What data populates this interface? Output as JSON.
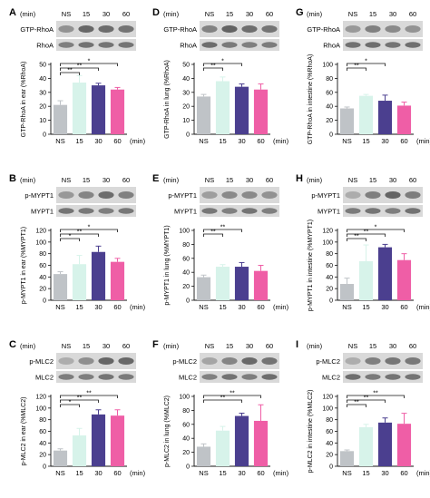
{
  "figure": {
    "time_unit": "(min)",
    "groups": [
      "NS",
      "15",
      "30",
      "60"
    ],
    "colors": [
      "#bfc3c7",
      "#d7f3ea",
      "#4b3f8f",
      "#ef5ea6"
    ]
  },
  "blots": [
    {
      "letter": "A",
      "top_label": "GTP-RhoA",
      "bottom_label": "RhoA"
    },
    {
      "letter": "D",
      "top_label": "GTP-RhoA",
      "bottom_label": "RhoA"
    },
    {
      "letter": "G",
      "top_label": "GTP-RhoA",
      "bottom_label": "RhoA"
    },
    {
      "letter": "B",
      "top_label": "p-MYPT1",
      "bottom_label": "MYPT1"
    },
    {
      "letter": "E",
      "top_label": "p-MYPT1",
      "bottom_label": "MYPT1"
    },
    {
      "letter": "H",
      "top_label": "p-MYPT1",
      "bottom_label": "MYPT1"
    },
    {
      "letter": "C",
      "top_label": "p-MLC2",
      "bottom_label": "MLC2"
    },
    {
      "letter": "F",
      "top_label": "p-MLC2",
      "bottom_label": "MLC2"
    },
    {
      "letter": "I",
      "top_label": "p-MLC2",
      "bottom_label": "MLC2"
    }
  ],
  "chart_data": [
    {
      "type": "bar",
      "categories": [
        "NS",
        "15",
        "30",
        "60"
      ],
      "xlabel": "(min)",
      "ylabel": "GTP-RhoA in ear (%RhoA)",
      "ylim": [
        0,
        50
      ],
      "yticks": [
        0,
        10,
        20,
        30,
        40,
        50
      ],
      "values": [
        21,
        37,
        35,
        32
      ],
      "errors": [
        3,
        5,
        1.5,
        1.5
      ],
      "significance": [
        {
          "from": "NS",
          "to": "15",
          "label": "**"
        },
        {
          "from": "NS",
          "to": "30",
          "label": "**"
        },
        {
          "from": "NS",
          "to": "60",
          "label": "*"
        }
      ]
    },
    {
      "type": "bar",
      "categories": [
        "NS",
        "15",
        "30",
        "60"
      ],
      "xlabel": "(min)",
      "ylabel": "GTP-RhoA in lung (%RhoA)",
      "ylim": [
        0,
        50
      ],
      "yticks": [
        0,
        10,
        20,
        30,
        40,
        50
      ],
      "values": [
        27,
        38,
        34,
        32
      ],
      "errors": [
        1.5,
        3,
        2,
        4
      ],
      "significance": [
        {
          "from": "NS",
          "to": "15",
          "label": "**"
        },
        {
          "from": "NS",
          "to": "30",
          "label": "*"
        }
      ]
    },
    {
      "type": "bar",
      "categories": [
        "NS",
        "15",
        "30",
        "60"
      ],
      "xlabel": "(min)",
      "ylabel": "GTP-RhoA in intestine (%RhoA)",
      "ylim": [
        0,
        100
      ],
      "yticks": [
        0,
        20,
        40,
        60,
        80,
        100
      ],
      "values": [
        37,
        55,
        48,
        41
      ],
      "errors": [
        2,
        2,
        8,
        5
      ],
      "significance": [
        {
          "from": "NS",
          "to": "15",
          "label": "**"
        },
        {
          "from": "NS",
          "to": "30",
          "label": "*"
        }
      ]
    },
    {
      "type": "bar",
      "categories": [
        "NS",
        "15",
        "30",
        "60"
      ],
      "xlabel": "(min)",
      "ylabel": "p-MYPT1 in ear (%MYPT1)",
      "ylim": [
        0,
        120
      ],
      "yticks": [
        0,
        20,
        40,
        60,
        80,
        100,
        120
      ],
      "values": [
        45,
        62,
        83,
        66
      ],
      "errors": [
        4,
        15,
        10,
        6
      ],
      "significance": [
        {
          "from": "NS",
          "to": "15",
          "label": "*"
        },
        {
          "from": "NS",
          "to": "30",
          "label": "**"
        },
        {
          "from": "NS",
          "to": "60",
          "label": "*"
        }
      ]
    },
    {
      "type": "bar",
      "categories": [
        "NS",
        "15",
        "30",
        "60"
      ],
      "xlabel": "(min)",
      "ylabel": "p-MYPT1 in lung (%MYPT1)",
      "ylim": [
        0,
        100
      ],
      "yticks": [
        0,
        20,
        40,
        60,
        80,
        100
      ],
      "values": [
        33,
        48,
        48,
        42
      ],
      "errors": [
        3,
        3,
        6,
        8
      ],
      "significance": [
        {
          "from": "NS",
          "to": "15",
          "label": "**"
        },
        {
          "from": "NS",
          "to": "30",
          "label": "**"
        }
      ]
    },
    {
      "type": "bar",
      "categories": [
        "NS",
        "15",
        "30",
        "60"
      ],
      "xlabel": "(min)",
      "ylabel": "p-MYPT1 in intestine (%MYPT1)",
      "ylim": [
        0,
        120
      ],
      "yticks": [
        0,
        20,
        40,
        60,
        80,
        100,
        120
      ],
      "values": [
        28,
        67,
        91,
        69
      ],
      "errors": [
        10,
        28,
        5,
        11
      ],
      "significance": [
        {
          "from": "NS",
          "to": "15",
          "label": "**"
        },
        {
          "from": "NS",
          "to": "30",
          "label": "**"
        },
        {
          "from": "NS",
          "to": "60",
          "label": "*"
        }
      ]
    },
    {
      "type": "bar",
      "categories": [
        "NS",
        "15",
        "30",
        "60"
      ],
      "xlabel": "(min)",
      "ylabel": "p-MLC2 in ear (%MLC2)",
      "ylim": [
        0,
        120
      ],
      "yticks": [
        0,
        20,
        40,
        60,
        80,
        100,
        120
      ],
      "values": [
        27,
        53,
        89,
        87
      ],
      "errors": [
        3,
        12,
        8,
        10
      ],
      "significance": [
        {
          "from": "NS",
          "to": "15",
          "label": "*"
        },
        {
          "from": "NS",
          "to": "30",
          "label": "**"
        },
        {
          "from": "NS",
          "to": "60",
          "label": "**"
        }
      ]
    },
    {
      "type": "bar",
      "categories": [
        "NS",
        "15",
        "30",
        "60"
      ],
      "xlabel": "(min)",
      "ylabel": "p-MLC2 in lung (%MLC2)",
      "ylim": [
        0,
        100
      ],
      "yticks": [
        0,
        20,
        40,
        60,
        80,
        100
      ],
      "values": [
        28,
        51,
        72,
        65
      ],
      "errors": [
        4,
        6,
        4,
        23
      ],
      "significance": [
        {
          "from": "NS",
          "to": "30",
          "label": "**"
        },
        {
          "from": "NS",
          "to": "60",
          "label": "**"
        }
      ]
    },
    {
      "type": "bar",
      "categories": [
        "NS",
        "15",
        "30",
        "60"
      ],
      "xlabel": "(min)",
      "ylabel": "p-MLC2 in intestine (%MLC2)",
      "ylim": [
        0,
        120
      ],
      "yticks": [
        0,
        20,
        40,
        60,
        80,
        100,
        120
      ],
      "values": [
        26,
        67,
        75,
        73
      ],
      "errors": [
        2,
        5,
        8,
        18
      ],
      "significance": [
        {
          "from": "NS",
          "to": "15",
          "label": "**"
        },
        {
          "from": "NS",
          "to": "30",
          "label": "**"
        },
        {
          "from": "NS",
          "to": "60",
          "label": "**"
        }
      ]
    }
  ]
}
